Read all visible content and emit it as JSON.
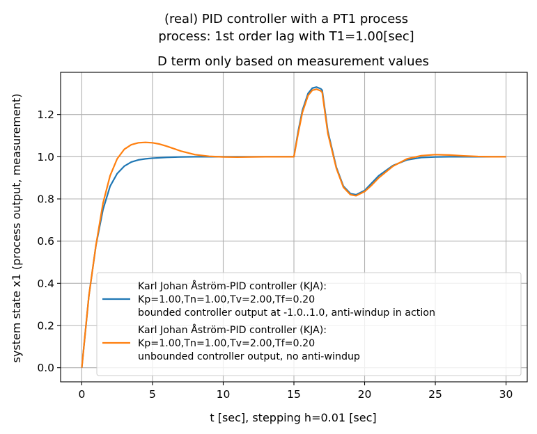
{
  "chart_data": {
    "type": "line",
    "title_line1": "(real) PID controller with a PT1 process",
    "title_line2": "process: 1st order lag with T1=1.00[sec]",
    "subtitle": "D term only based on measurement values",
    "xlabel": "t [sec], stepping h=0.01 [sec]",
    "ylabel": "system state x1 (process output, measurement)",
    "xlim": [
      -1.5,
      31.5
    ],
    "ylim": [
      -0.067,
      1.4
    ],
    "xticks": [
      0,
      5,
      10,
      15,
      20,
      25,
      30
    ],
    "yticks": [
      0.0,
      0.2,
      0.4,
      0.6,
      0.8,
      1.0,
      1.2
    ],
    "ytick_labels": [
      "0.0",
      "0.2",
      "0.4",
      "0.6",
      "0.8",
      "1.0",
      "1.2"
    ],
    "grid": true,
    "legend_position": "lower-right",
    "series": [
      {
        "name": "bounded",
        "color": "#1f77b4",
        "legend_lines": [
          "Karl Johan Åström-PID controller (KJA):",
          "Kp=1.00,Tn=1.00,Tv=2.00,Tf=0.20",
          "bounded controller output at -1.0..1.0, anti-windup in action"
        ],
        "x": [
          0,
          0.5,
          1,
          1.5,
          2,
          2.5,
          3,
          3.5,
          4,
          4.5,
          5,
          6,
          7,
          8,
          9,
          10,
          11,
          12,
          13,
          14,
          15,
          15.3,
          15.6,
          16,
          16.3,
          16.6,
          16.9,
          17.0,
          17.4,
          18,
          18.5,
          19,
          19.4,
          20,
          20.5,
          21,
          22,
          23,
          24,
          25,
          26,
          27,
          28,
          29,
          30
        ],
        "y": [
          0,
          0.34,
          0.58,
          0.75,
          0.86,
          0.92,
          0.955,
          0.975,
          0.985,
          0.99,
          0.993,
          0.997,
          0.999,
          1.0,
          1.0,
          1.0,
          1.0,
          1.0,
          1.0,
          1.0,
          1.0,
          1.12,
          1.22,
          1.3,
          1.325,
          1.33,
          1.322,
          1.315,
          1.12,
          0.95,
          0.86,
          0.825,
          0.82,
          0.84,
          0.875,
          0.91,
          0.958,
          0.985,
          0.996,
          0.999,
          1.0,
          1.0,
          1.0,
          1.0,
          1.0
        ]
      },
      {
        "name": "unbounded",
        "color": "#ff7f0e",
        "legend_lines": [
          "Karl Johan Åström-PID controller (KJA):",
          "Kp=1.00,Tn=1.00,Tv=2.00,Tf=0.20",
          "unbounded controller output, no anti-windup"
        ],
        "x": [
          0,
          0.5,
          1,
          1.5,
          2,
          2.5,
          3,
          3.5,
          4,
          4.5,
          5,
          5.5,
          6,
          7,
          8,
          9,
          10,
          11,
          12,
          13,
          14,
          15,
          15.3,
          15.6,
          16,
          16.3,
          16.6,
          16.9,
          17.0,
          17.4,
          18,
          18.5,
          19,
          19.4,
          20,
          20.5,
          21,
          22,
          23,
          24,
          25,
          26,
          27,
          28,
          29,
          30
        ],
        "y": [
          0,
          0.34,
          0.58,
          0.78,
          0.91,
          0.99,
          1.035,
          1.057,
          1.066,
          1.068,
          1.066,
          1.06,
          1.05,
          1.027,
          1.01,
          1.002,
          0.999,
          0.998,
          0.999,
          1.0,
          1.0,
          1.0,
          1.11,
          1.21,
          1.29,
          1.315,
          1.32,
          1.312,
          1.305,
          1.11,
          0.945,
          0.855,
          0.82,
          0.815,
          0.835,
          0.865,
          0.9,
          0.955,
          0.99,
          1.005,
          1.01,
          1.008,
          1.004,
          1.001,
          1.0,
          1.0
        ]
      }
    ]
  }
}
